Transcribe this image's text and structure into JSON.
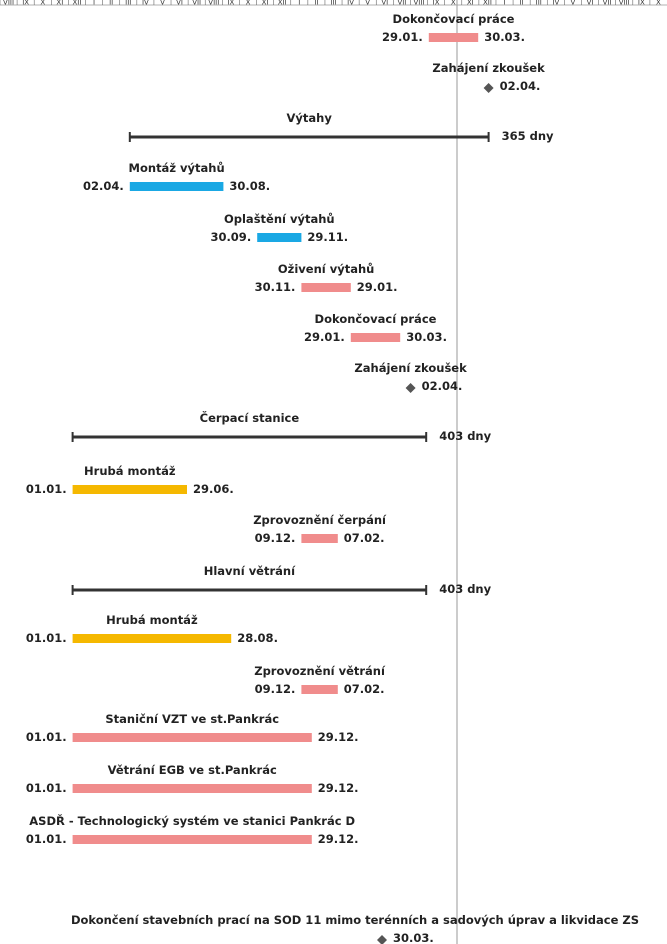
{
  "colors": {
    "summary": "#333333",
    "blue": "#1aa8e4",
    "pink": "#f08c8c",
    "yellow": "#f5b800",
    "milestone": "#555555",
    "grid": "#999999"
  },
  "timescale": {
    "month_labels": [
      "VIII",
      "IX",
      "X",
      "XI",
      "XII",
      "I",
      "II",
      "III",
      "IV",
      "V",
      "VI",
      "VII",
      "VIII",
      "IX",
      "X",
      "XI",
      "XII",
      "I",
      "II",
      "III",
      "IV",
      "V",
      "VI",
      "VII",
      "VIII",
      "IX",
      "X",
      "XI",
      "XII",
      "I",
      "II",
      "III",
      "IV",
      "V",
      "VI",
      "VII",
      "VIII",
      "IX",
      "X"
    ]
  },
  "chart_data": {
    "type": "gantt",
    "tasks": [
      {
        "name": "Dokončovací práce",
        "kind": "task",
        "color": "pink",
        "start": "29.01.",
        "end": "30.03.",
        "start_index": 173,
        "end_index": 192
      },
      {
        "name": "Zahájení zkoušek",
        "kind": "milestone",
        "date": "02.04.",
        "index": 196
      },
      {
        "name": "Výtahy",
        "kind": "summary",
        "duration": "365 dny",
        "start_index": 58,
        "end_index": 196
      },
      {
        "name": "Montáž výtahů",
        "kind": "task",
        "color": "blue",
        "start": "02.04.",
        "end": "30.08.",
        "start_index": 58,
        "end_index": 94
      },
      {
        "name": "Oplaštění výtahů",
        "kind": "task",
        "color": "blue",
        "start": "30.09.",
        "end": "29.11.",
        "start_index": 107,
        "end_index": 124
      },
      {
        "name": "Oživení výtahů",
        "kind": "task",
        "color": "pink",
        "start": "30.11.",
        "end": "29.01.",
        "start_index": 124,
        "end_index": 143
      },
      {
        "name": "Dokončovací práce",
        "kind": "task",
        "color": "pink",
        "start": "29.01.",
        "end": "30.03.",
        "start_index": 143,
        "end_index": 162
      },
      {
        "name": "Zahájení zkoušek",
        "kind": "milestone",
        "date": "02.04.",
        "index": 166
      },
      {
        "name": "Čerpací stanice",
        "kind": "summary",
        "duration": "403 dny",
        "start_index": 36,
        "end_index": 172
      },
      {
        "name": "Hrubá montáž",
        "kind": "task",
        "color": "yellow",
        "start": "01.01.",
        "end": "29.06.",
        "start_index": 36,
        "end_index": 80
      },
      {
        "name": "Zprovoznění čerpání",
        "kind": "task",
        "color": "pink",
        "start": "09.12.",
        "end": "07.02.",
        "start_index": 124,
        "end_index": 138
      },
      {
        "name": "Hlavní větrání",
        "kind": "summary",
        "duration": "403 dny",
        "start_index": 36,
        "end_index": 172
      },
      {
        "name": "Hrubá montáž",
        "kind": "task",
        "color": "yellow",
        "start": "01.01.",
        "end": "28.08.",
        "start_index": 36,
        "end_index": 97
      },
      {
        "name": "Zprovoznění větrání",
        "kind": "task",
        "color": "pink",
        "start": "09.12.",
        "end": "07.02.",
        "start_index": 124,
        "end_index": 138
      },
      {
        "name": "Staniční VZT ve st.Pankrác",
        "kind": "task",
        "color": "pink",
        "start": "01.01.",
        "end": "29.12.",
        "start_index": 36,
        "end_index": 128
      },
      {
        "name": "Větrání EGB ve st.Pankrác",
        "kind": "task",
        "color": "pink",
        "start": "01.01.",
        "end": "29.12.",
        "start_index": 36,
        "end_index": 128
      },
      {
        "name": "ASDŘ - Technologický systém ve stanici Pankrác D",
        "kind": "task",
        "color": "pink",
        "start": "01.01.",
        "end": "29.12.",
        "start_index": 36,
        "end_index": 128
      },
      {
        "name": "Dokončení stavebních prací na SOD 11 mimo terénních a sadových úprav a likvidace ZS",
        "kind": "milestone",
        "date": "30.03.",
        "index": 155
      }
    ]
  }
}
